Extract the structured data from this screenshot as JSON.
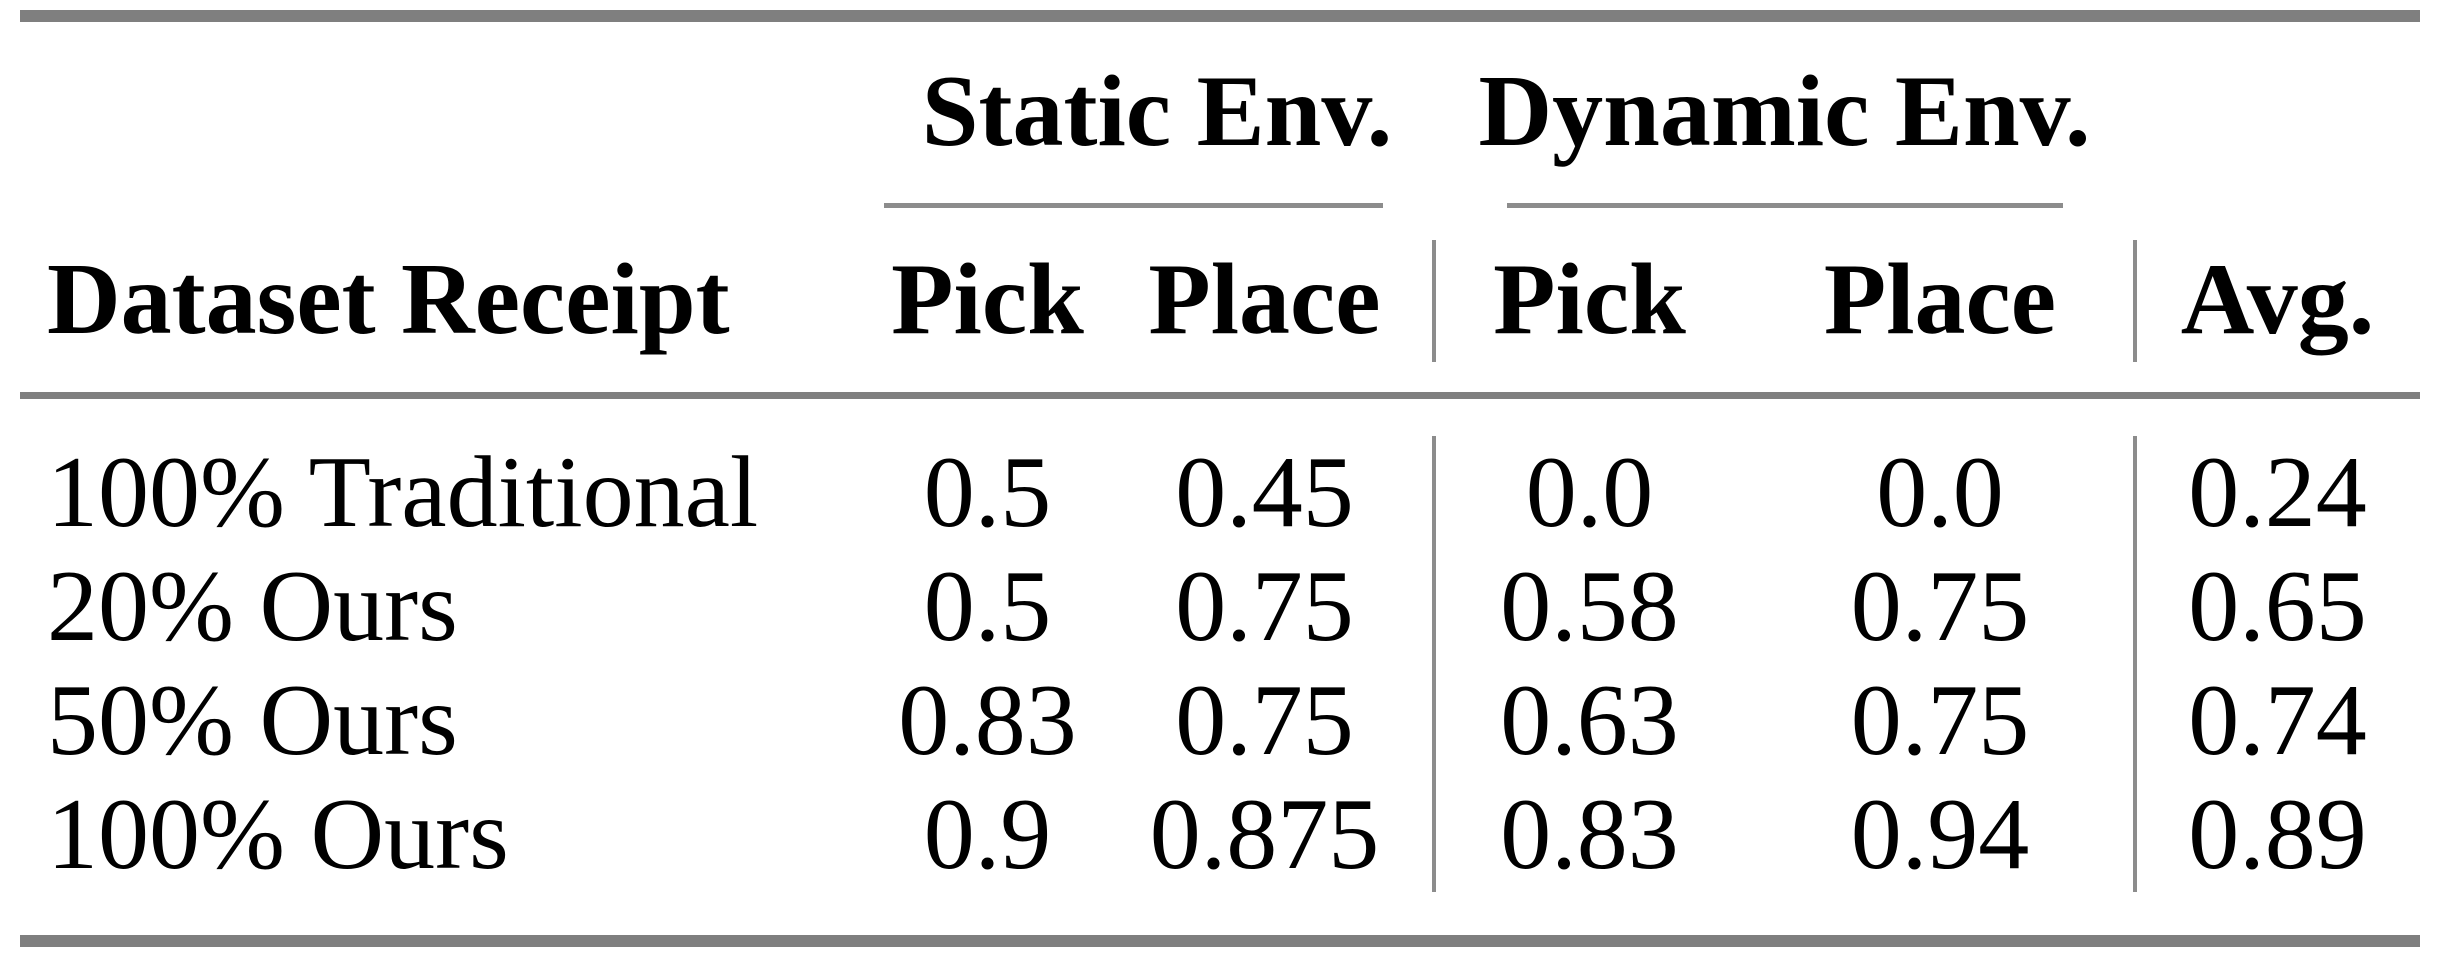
{
  "table": {
    "group_headers": [
      {
        "label": "Static Env."
      },
      {
        "label": "Dynamic Env."
      }
    ],
    "column_headers": [
      "Dataset Receipt",
      "Pick",
      "Place",
      "Pick",
      "Place",
      "Avg."
    ],
    "rows": [
      {
        "label": "100% Traditional",
        "values": [
          "0.5",
          "0.45",
          "0.0",
          "0.0",
          "0.24"
        ]
      },
      {
        "label": "20% Ours",
        "values": [
          "0.5",
          "0.75",
          "0.58",
          "0.75",
          "0.65"
        ]
      },
      {
        "label": "50% Ours",
        "values": [
          "0.83",
          "0.75",
          "0.63",
          "0.75",
          "0.74"
        ]
      },
      {
        "label": "100% Ours",
        "values": [
          "0.9",
          "0.875",
          "0.83",
          "0.94",
          "0.89"
        ]
      }
    ],
    "colors": {
      "thick_rule": "#7f7f7f",
      "thin_rule": "#8c8c8c",
      "text": "#000000",
      "background": "#ffffff"
    }
  },
  "chart_data": {
    "type": "table",
    "title": "",
    "row_header": "Dataset Receipt",
    "column_groups": [
      "Static Env.",
      "Dynamic Env."
    ],
    "columns": [
      "Static Pick",
      "Static Place",
      "Dynamic Pick",
      "Dynamic Place",
      "Avg."
    ],
    "categories": [
      "100% Traditional",
      "20% Ours",
      "50% Ours",
      "100% Ours"
    ],
    "series": [
      {
        "name": "100% Traditional",
        "values": [
          0.5,
          0.45,
          0.0,
          0.0,
          0.24
        ]
      },
      {
        "name": "20% Ours",
        "values": [
          0.5,
          0.75,
          0.58,
          0.75,
          0.65
        ]
      },
      {
        "name": "50% Ours",
        "values": [
          0.83,
          0.75,
          0.63,
          0.75,
          0.74
        ]
      },
      {
        "name": "100% Ours",
        "values": [
          0.9,
          0.875,
          0.83,
          0.94,
          0.89
        ]
      }
    ]
  }
}
